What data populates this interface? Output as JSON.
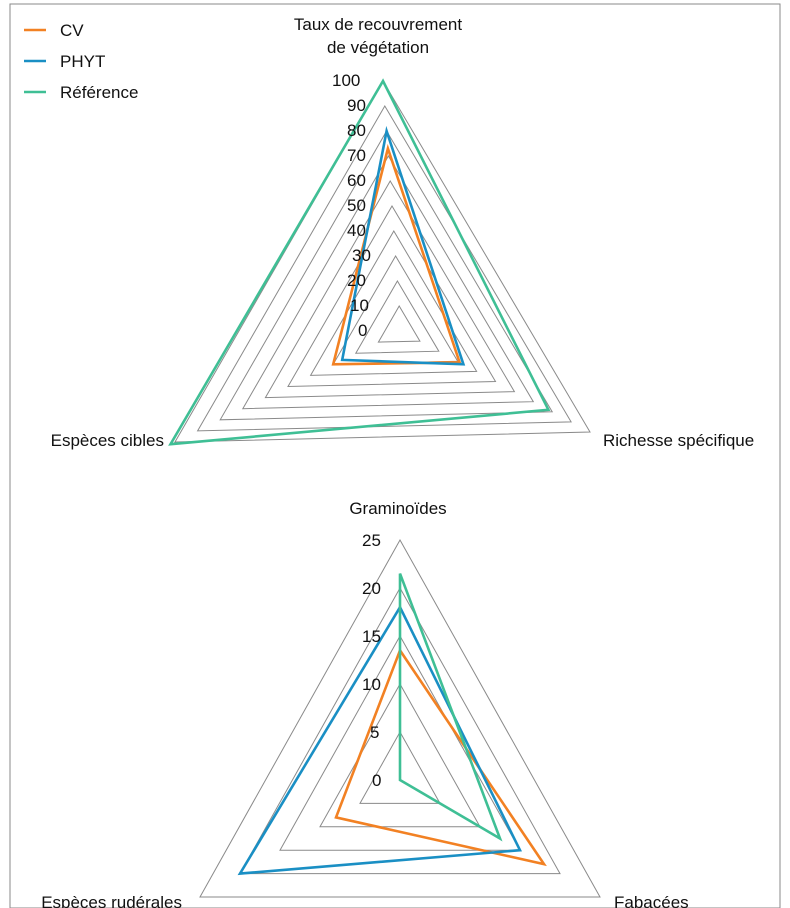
{
  "legend": {
    "items": [
      {
        "label": "CV",
        "color": "#F28123"
      },
      {
        "label": "PHYT",
        "color": "#1A8FC4"
      },
      {
        "label": "Référence",
        "color": "#3FBF95"
      }
    ]
  },
  "chart_data": [
    {
      "type": "radar",
      "axes": [
        "Taux de recouvrement de végétation",
        "Richesse spécifique",
        "Espèces cibles"
      ],
      "axis_label_lines": [
        [
          "Taux de recouvrement",
          "de végétation"
        ],
        [
          "Richesse spécifique"
        ],
        [
          "Espèces cibles"
        ]
      ],
      "ticks": [
        "0",
        "10",
        "20",
        "30",
        "40",
        "50",
        "60",
        "70",
        "80",
        "90",
        "100"
      ],
      "range": [
        0,
        100
      ],
      "grid": true,
      "legend_position": "top-left",
      "series": [
        {
          "name": "CV",
          "values": [
            73,
            31,
            30
          ]
        },
        {
          "name": "PHYT",
          "values": [
            80,
            33,
            26
          ]
        },
        {
          "name": "Référence",
          "values": [
            100,
            78,
            102
          ]
        }
      ]
    },
    {
      "type": "radar",
      "axes": [
        "Graminoïdes",
        "Fabacées",
        "Espèces rudérales"
      ],
      "axis_label_lines": [
        [
          "Graminoïdes"
        ],
        [
          "Fabacées"
        ],
        [
          "Espèces rudérales"
        ]
      ],
      "ticks": [
        "0",
        "5",
        "10",
        "15",
        "20",
        "25"
      ],
      "range": [
        0,
        25
      ],
      "grid": true,
      "series": [
        {
          "name": "CV",
          "values": [
            13.5,
            18,
            8
          ]
        },
        {
          "name": "PHYT",
          "values": [
            18,
            15,
            20
          ]
        },
        {
          "name": "Référence",
          "values": [
            21.5,
            12.5,
            0
          ]
        }
      ]
    }
  ]
}
